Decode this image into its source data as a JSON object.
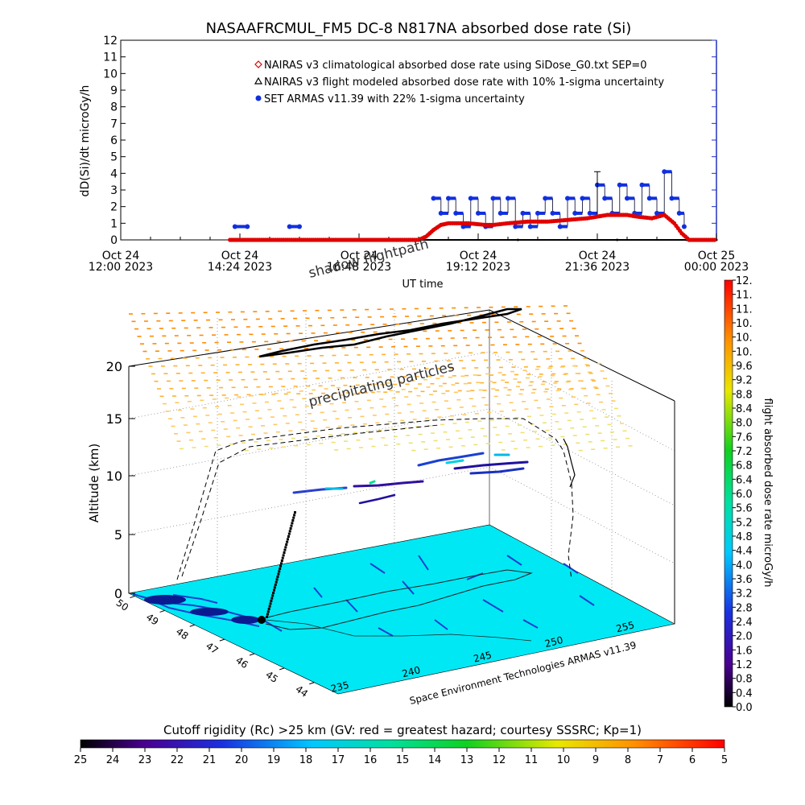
{
  "title": "NASAAFRCMUL_FM5 DC-8   N817NA absorbed dose rate (Si)",
  "chart_data": [
    {
      "type": "scatter",
      "ylabel": "dD(Si)/dt microGy/h",
      "xlabel": "UT time",
      "ylim": [
        0,
        12
      ],
      "yticks": [
        0,
        1,
        2,
        3,
        4,
        5,
        6,
        7,
        8,
        9,
        10,
        11,
        12
      ],
      "xticks": [
        {
          "t": 0.0,
          "line1": "Oct 24",
          "line2": "12:00 2023"
        },
        {
          "t": 2.4,
          "line1": "Oct 24",
          "line2": "14:24 2023"
        },
        {
          "t": 4.8,
          "line1": "Oct 24",
          "line2": "16:48 2023"
        },
        {
          "t": 7.2,
          "line1": "Oct 24",
          "line2": "19:12 2023"
        },
        {
          "t": 9.6,
          "line1": "Oct 24",
          "line2": "21:36 2023"
        },
        {
          "t": 12.0,
          "line1": "Oct 25",
          "line2": "00:00 2023"
        }
      ],
      "legend": [
        {
          "label": "NAIRAS v3 climatological absorbed dose rate using SiDose_G0.txt SEP=0",
          "color": "#e00000",
          "marker": "diamond"
        },
        {
          "label": "NAIRAS v3 flight modeled absorbed dose rate with 10% 1-sigma uncertainty",
          "color": "#000000",
          "marker": "triangle"
        },
        {
          "label": "SET ARMAS v11.39 with 22% 1-sigma uncertainty",
          "color": "#1030e0",
          "marker": "circle"
        }
      ],
      "series": [
        {
          "name": "NAIRAS v3 climatological absorbed dose rate using SiDose_G0.txt SEP=0",
          "color": "#e00000",
          "points": [
            [
              2.2,
              0
            ],
            [
              3.0,
              0
            ],
            [
              4.0,
              0
            ],
            [
              5.0,
              0
            ],
            [
              6.0,
              0
            ],
            [
              6.15,
              0.2
            ],
            [
              6.3,
              0.6
            ],
            [
              6.45,
              0.9
            ],
            [
              6.6,
              1.0
            ],
            [
              7.0,
              1.0
            ],
            [
              7.35,
              0.9
            ],
            [
              7.5,
              0.9
            ],
            [
              7.8,
              1.0
            ],
            [
              8.2,
              1.1
            ],
            [
              8.6,
              1.1
            ],
            [
              9.0,
              1.2
            ],
            [
              9.4,
              1.3
            ],
            [
              9.8,
              1.5
            ],
            [
              10.2,
              1.5
            ],
            [
              10.4,
              1.4
            ],
            [
              10.7,
              1.3
            ],
            [
              10.95,
              1.5
            ],
            [
              11.15,
              1.0
            ],
            [
              11.3,
              0.4
            ],
            [
              11.45,
              0
            ],
            [
              12.0,
              0
            ]
          ]
        },
        {
          "name": "NAIRAS v3 flight modeled absorbed dose rate with 10% 1-sigma uncertainty",
          "color": "#000000",
          "points": [
            [
              2.2,
              0
            ],
            [
              4.0,
              0
            ],
            [
              6.0,
              0
            ],
            [
              8.0,
              0
            ],
            [
              10.0,
              0
            ],
            [
              11.4,
              0
            ],
            [
              12.0,
              0
            ]
          ]
        },
        {
          "name": "SET ARMAS v11.39 with 22% 1-sigma uncertainty",
          "color": "#1030e0",
          "points": [
            [
              2.3,
              0.8
            ],
            [
              2.55,
              0.8
            ],
            [
              3.4,
              0.8
            ],
            [
              3.6,
              0.8
            ],
            [
              6.3,
              2.5
            ],
            [
              6.45,
              1.6
            ],
            [
              6.6,
              2.5
            ],
            [
              6.75,
              1.6
            ],
            [
              6.9,
              0.8
            ],
            [
              7.05,
              2.5
            ],
            [
              7.2,
              1.6
            ],
            [
              7.35,
              0.8
            ],
            [
              7.5,
              2.5
            ],
            [
              7.65,
              1.6
            ],
            [
              7.8,
              2.5
            ],
            [
              7.95,
              0.8
            ],
            [
              8.1,
              1.6
            ],
            [
              8.25,
              0.8
            ],
            [
              8.4,
              1.6
            ],
            [
              8.55,
              2.5
            ],
            [
              8.7,
              1.6
            ],
            [
              8.85,
              0.8
            ],
            [
              9.0,
              2.5
            ],
            [
              9.15,
              1.6
            ],
            [
              9.3,
              2.5
            ],
            [
              9.45,
              1.6
            ],
            [
              9.6,
              3.3
            ],
            [
              9.75,
              2.5
            ],
            [
              9.9,
              1.6
            ],
            [
              10.05,
              3.3
            ],
            [
              10.2,
              2.5
            ],
            [
              10.35,
              1.6
            ],
            [
              10.5,
              3.3
            ],
            [
              10.65,
              2.5
            ],
            [
              10.8,
              1.6
            ],
            [
              10.95,
              4.1
            ],
            [
              11.1,
              2.5
            ],
            [
              11.25,
              1.6
            ],
            [
              11.35,
              0.8
            ]
          ]
        }
      ]
    },
    {
      "type": "3d-scatter",
      "zlabel": "Altitude (km)",
      "zticks": [
        0,
        5,
        10,
        15,
        20
      ],
      "lat_ticks": [
        "50",
        "49",
        "48",
        "47",
        "46",
        "45",
        "44"
      ],
      "lon_ticks": [
        "235",
        "240",
        "245",
        "250",
        "255"
      ],
      "annotations": [
        "shadow flightpath",
        "precipitating particles"
      ],
      "credit": "Space Environment Technologies ARMAS v11.39",
      "colorbar": {
        "label": "flight absorbed dose rate microGy/h",
        "ticks": [
          "0.0",
          "0.4",
          "0.8",
          "1.2",
          "1.6",
          "2.0",
          "2.4",
          "2.8",
          "3.2",
          "3.6",
          "4.0",
          "4.4",
          "4.8",
          "5.2",
          "5.6",
          "6.0",
          "6.4",
          "6.8",
          "7.2",
          "7.6",
          "8.0",
          "8.4",
          "8.8",
          "9.2",
          "9.6",
          "10.",
          "10.",
          "10.",
          "11.",
          "11.",
          "12."
        ]
      }
    },
    {
      "type": "colorbar",
      "title": "Cutoff rigidity (Rc) >25 km (GV: red = greatest hazard; courtesy SSSRC; Kp=1)",
      "ticks": [
        "25",
        "24",
        "23",
        "22",
        "21",
        "20",
        "19",
        "18",
        "17",
        "16",
        "15",
        "14",
        "13",
        "12",
        "11",
        "10",
        "9",
        "8",
        "7",
        "6",
        "5"
      ]
    }
  ]
}
